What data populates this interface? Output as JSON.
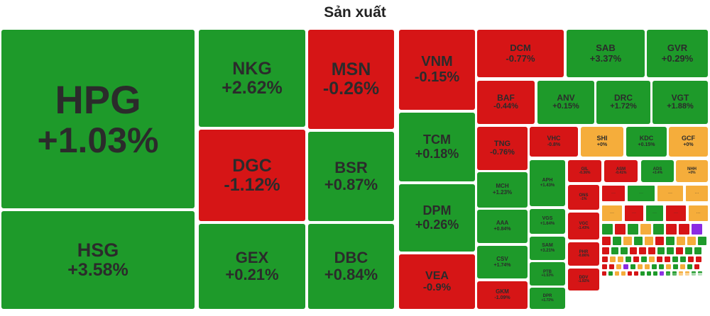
{
  "title": "Sản xuất",
  "colors": {
    "up": "#1e9a2a",
    "down": "#d61516",
    "flat": "#f5ad3b",
    "purple": "#8a2be2",
    "white": "#f2f2f2"
  },
  "chart_data": {
    "type": "treemap",
    "title": "Sản xuất",
    "items": [
      {
        "symbol": "HPG",
        "change": "+1.03%",
        "status": "up"
      },
      {
        "symbol": "HSG",
        "change": "+3.58%",
        "status": "up"
      },
      {
        "symbol": "NKG",
        "change": "+2.62%",
        "status": "up"
      },
      {
        "symbol": "DGC",
        "change": "-1.12%",
        "status": "down"
      },
      {
        "symbol": "GEX",
        "change": "+0.21%",
        "status": "up"
      },
      {
        "symbol": "MSN",
        "change": "-0.26%",
        "status": "down"
      },
      {
        "symbol": "BSR",
        "change": "+0.87%",
        "status": "up"
      },
      {
        "symbol": "DBC",
        "change": "+0.84%",
        "status": "up"
      },
      {
        "symbol": "VNM",
        "change": "-0.15%",
        "status": "down"
      },
      {
        "symbol": "TCM",
        "change": "+0.18%",
        "status": "up"
      },
      {
        "symbol": "DPM",
        "change": "+0.26%",
        "status": "up"
      },
      {
        "symbol": "VEA",
        "change": "-0.9%",
        "status": "down"
      },
      {
        "symbol": "DCM",
        "change": "-0.77%",
        "status": "down"
      },
      {
        "symbol": "SAB",
        "change": "+3.37%",
        "status": "up"
      },
      {
        "symbol": "GVR",
        "change": "+0.29%",
        "status": "up"
      },
      {
        "symbol": "BAF",
        "change": "-0.44%",
        "status": "down"
      },
      {
        "symbol": "ANV",
        "change": "+0.15%",
        "status": "up"
      },
      {
        "symbol": "DRC",
        "change": "+1.72%",
        "status": "up"
      },
      {
        "symbol": "VGT",
        "change": "+1.88%",
        "status": "up"
      },
      {
        "symbol": "TNG",
        "change": "-0.76%",
        "status": "down"
      },
      {
        "symbol": "VHC",
        "change": "-0.8%",
        "status": "down"
      },
      {
        "symbol": "SHI",
        "change": "+0%",
        "status": "flat"
      },
      {
        "symbol": "KDC",
        "change": "+0.15%",
        "status": "up"
      },
      {
        "symbol": "GCF",
        "change": "+0%",
        "status": "flat"
      },
      {
        "symbol": "MCH",
        "change": "+1.23%",
        "status": "up"
      },
      {
        "symbol": "APH",
        "change": "+1.43%",
        "status": "up"
      },
      {
        "symbol": "GIL",
        "change": "-0.36%",
        "status": "down"
      },
      {
        "symbol": "ASM",
        "change": "-0.41%",
        "status": "down"
      },
      {
        "symbol": "ADS",
        "change": "+3.4%",
        "status": "up"
      },
      {
        "symbol": "NHH",
        "change": "+0%",
        "status": "flat"
      },
      {
        "symbol": "AAA",
        "change": "+0.84%",
        "status": "up"
      },
      {
        "symbol": "VGS",
        "change": "+1.64%",
        "status": "up"
      },
      {
        "symbol": "ONS",
        "change": "-1%",
        "status": "down"
      },
      {
        "symbol": "CSV",
        "change": "+1.74%",
        "status": "up"
      },
      {
        "symbol": "SAM",
        "change": "+3.21%",
        "status": "up"
      },
      {
        "symbol": "VGC",
        "change": "-1.43%",
        "status": "down"
      },
      {
        "symbol": "GKM",
        "change": "-1.09%",
        "status": "down"
      },
      {
        "symbol": "PTB",
        "change": "+1.53%",
        "status": "up"
      },
      {
        "symbol": "PHR",
        "change": "-0.86%",
        "status": "down"
      },
      {
        "symbol": "DPR",
        "change": "+1.72%",
        "status": "up"
      },
      {
        "symbol": "DDV",
        "change": "-1.92%",
        "status": "down"
      }
    ]
  }
}
